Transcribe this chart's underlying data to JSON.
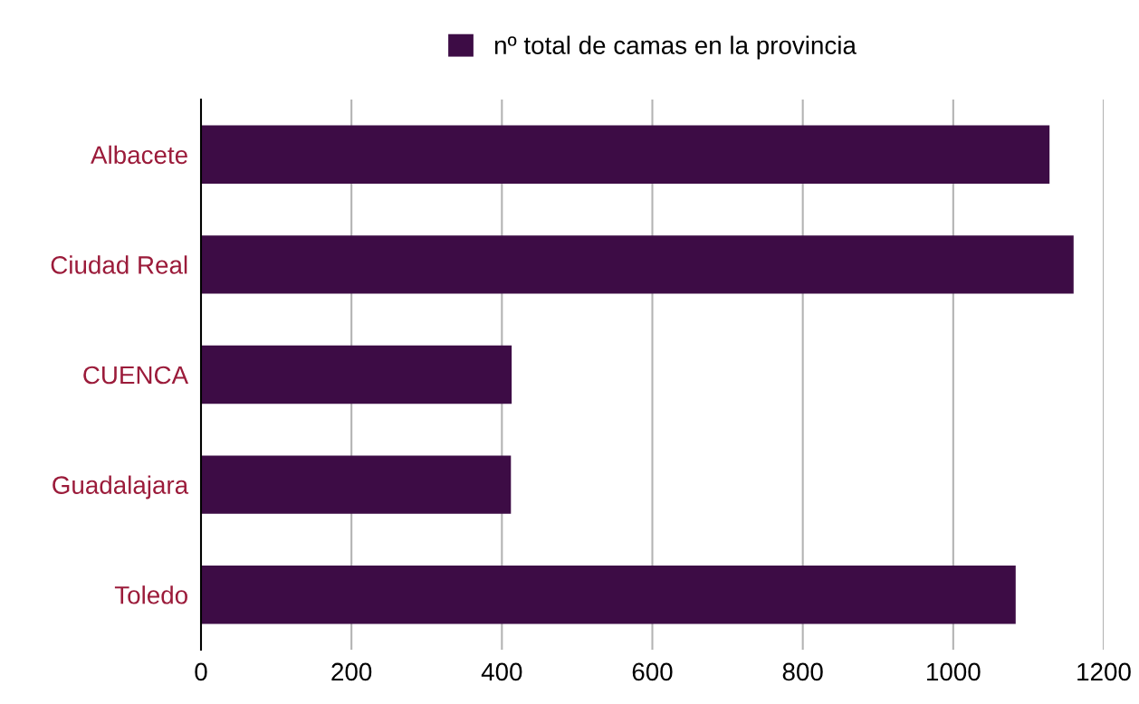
{
  "chart_data": {
    "type": "bar",
    "orientation": "horizontal",
    "categories": [
      "Albacete",
      "Ciudad Real",
      "CUENCA",
      "Guadalajara",
      "Toledo"
    ],
    "series": [
      {
        "name": "nº total de camas en la provincia",
        "color": "#3d0c45",
        "values": [
          1128,
          1160,
          413,
          412,
          1083
        ]
      }
    ],
    "xlim": [
      0,
      1200
    ],
    "xticks": [
      0,
      200,
      400,
      600,
      800,
      1000,
      1200
    ],
    "grid": "x",
    "legend": "top"
  }
}
